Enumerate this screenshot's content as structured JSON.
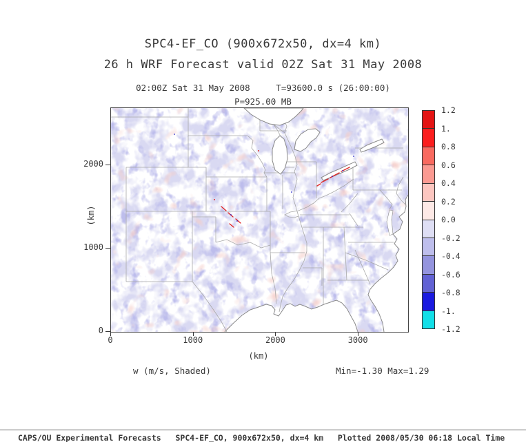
{
  "header": {
    "title_line1": "SPC4-EF_CO (900x672x50, dx=4 km)",
    "title_line2": "26 h WRF Forecast valid 02Z Sat 31 May 2008",
    "valid_line": "02:00Z Sat 31 May 2008     T=93600.0 s (26:00:00)",
    "level_line": "P=925.00 MB"
  },
  "footer": {
    "text": "CAPS/OU Experimental Forecasts   SPC4-EF_CO, 900x672x50, dx=4 km   Plotted 2008/05/30 06:18 Local Time"
  },
  "chart_data": {
    "type": "heatmap",
    "title": "SPC4-EF_CO (900x672x50, dx=4 km)",
    "subtitle": "26 h WRF Forecast valid 02Z Sat 31 May 2008",
    "valid_time": "02:00Z Sat 31 May 2008",
    "model_time": "T=93600.0 s (26:00:00)",
    "pressure_level": "P=925.00 MB",
    "field_label": "w (m/s, Shaded)",
    "stats_label": "Min=-1.30 Max=1.29",
    "min": -1.3,
    "max": 1.29,
    "xlabel": "(km)",
    "ylabel": "(km)",
    "xlim": [
      0,
      3600
    ],
    "ylim": [
      0,
      2688
    ],
    "x_ticks": [
      0,
      1000,
      2000,
      3000
    ],
    "y_ticks": [
      0,
      1000,
      2000
    ],
    "grid": false,
    "legend_position": "right-colorbar",
    "colorbar": {
      "tick_labels": [
        "1.2",
        "1.",
        "0.8",
        "0.6",
        "0.4",
        "0.2",
        "0.0",
        "-0.2",
        "-0.4",
        "-0.6",
        "-0.8",
        "-1.",
        "-1.2"
      ],
      "segment_colors_top_to_bottom": [
        "#e41414",
        "#fb1e1e",
        "#f96a60",
        "#fb9a92",
        "#fcc6c0",
        "#fde9e6",
        "#dedef4",
        "#bebeec",
        "#9494de",
        "#6262d4",
        "#1a1ae0",
        "#12dfe8"
      ]
    },
    "pattern_summary": "Weak negative vertical velocity (pale purple shading) scattered over most of the central and eastern US; isolated strong updraft streaks (red) over Kansas-Oklahoma and along the southern Great Lakes / Ohio valley."
  }
}
